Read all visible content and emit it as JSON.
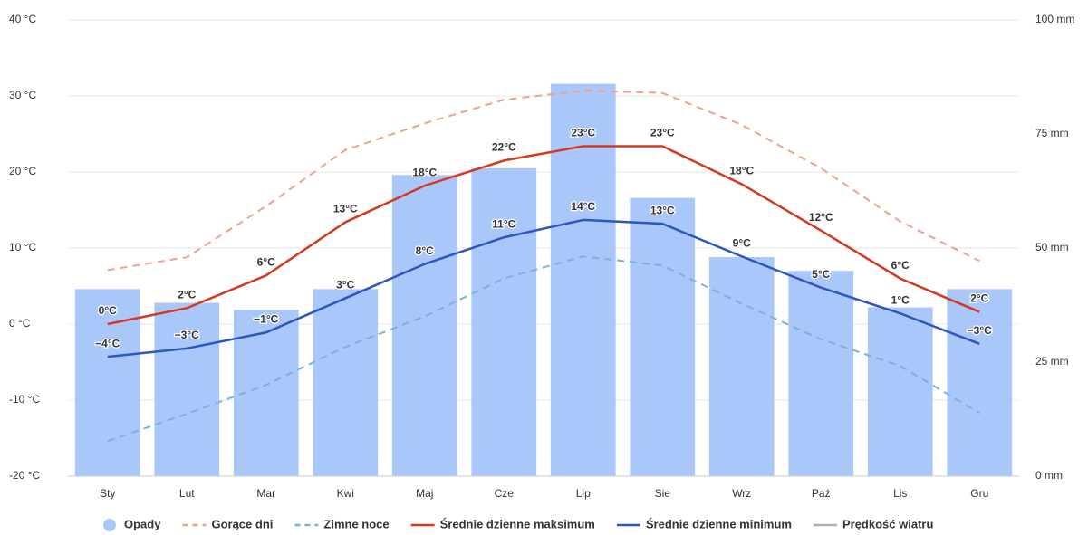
{
  "chart_data": {
    "type": "combo",
    "categories": [
      "Sty",
      "Lut",
      "Mar",
      "Kwi",
      "Maj",
      "Cze",
      "Lip",
      "Sie",
      "Wrz",
      "Paź",
      "Lis",
      "Gru"
    ],
    "ylim": [
      -20,
      40
    ],
    "yticks": [
      {
        "value": -20,
        "label": "-20 °C"
      },
      {
        "value": -10,
        "label": "-10 °C"
      },
      {
        "value": 0,
        "label": "0 °C"
      },
      {
        "value": 10,
        "label": "10 °C"
      },
      {
        "value": 20,
        "label": "20 °C"
      },
      {
        "value": 30,
        "label": "30 °C"
      },
      {
        "value": 40,
        "label": "40 °C"
      }
    ],
    "y2lim": [
      0,
      100
    ],
    "y2ticks": [
      {
        "value": 0,
        "label": "0 mm"
      },
      {
        "value": 25,
        "label": "25 mm"
      },
      {
        "value": 50,
        "label": "50 mm"
      },
      {
        "value": 75,
        "label": "75 mm"
      },
      {
        "value": 100,
        "label": "100 mm"
      }
    ],
    "grid": true,
    "legend": "bottom",
    "series": [
      {
        "name": "Opady",
        "type": "bar",
        "axis": "y2",
        "color": "#aac7fa",
        "values": [
          41,
          38,
          36.5,
          41,
          66,
          67.5,
          86,
          61,
          48,
          45,
          37,
          41
        ]
      },
      {
        "name": "Gorące dni",
        "type": "line",
        "dashed": true,
        "color": "#f2a08e",
        "values": [
          7.1,
          8.8,
          15.5,
          22.9,
          26.4,
          29.5,
          30.7,
          30.4,
          26.2,
          20.5,
          13.5,
          8.3
        ]
      },
      {
        "name": "Zimne noce",
        "type": "line",
        "dashed": true,
        "color": "#7ab0de",
        "values": [
          -15.4,
          -11.8,
          -8,
          -3,
          1,
          6,
          8.9,
          7.7,
          2.7,
          -2,
          -5.5,
          -11.7
        ]
      },
      {
        "name": "Średnie dzienne maksimum",
        "type": "line",
        "color": "#d5381e",
        "values": [
          0,
          2.1,
          6.4,
          13.4,
          18.2,
          21.5,
          23.4,
          23.4,
          18.4,
          12.3,
          6,
          1.6
        ],
        "value_labels": [
          "0°C",
          "2°C",
          "6°C",
          "13°C",
          "18°C",
          "22°C",
          "23°C",
          "23°C",
          "18°C",
          "12°C",
          "6°C",
          "2°C"
        ]
      },
      {
        "name": "Średnie dzienne minimum",
        "type": "line",
        "color": "#2f55c0",
        "values": [
          -4.3,
          -3.2,
          -1.1,
          3.4,
          7.9,
          11.4,
          13.7,
          13.2,
          8.9,
          4.8,
          1.4,
          -2.6
        ],
        "value_labels": [
          "−4°C",
          "−3°C",
          "−1°C",
          "3°C",
          "8°C",
          "11°C",
          "14°C",
          "13°C",
          "9°C",
          "5°C",
          "1°C",
          "−3°C"
        ]
      },
      {
        "name": "Prędkość wiatru",
        "type": "line",
        "hidden": true,
        "color": "#b0b0b0"
      }
    ]
  }
}
